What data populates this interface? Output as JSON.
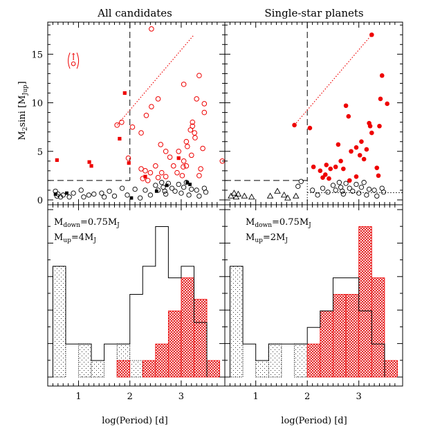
{
  "chart_data": [
    {
      "type": "scatter",
      "panel": "top-left",
      "title": "All candidates",
      "ylabel_main": "M",
      "ylabel_sub": "2",
      "ylabel_mid": "sini [M",
      "ylabel_sub2": "Jup",
      "ylabel_end": "]",
      "xlim": [
        0.4,
        3.85
      ],
      "ylim": [
        -0.5,
        18.3
      ],
      "yticks": [
        "0",
        "5",
        "10",
        "15"
      ],
      "xticks": [
        "1",
        "2",
        "3"
      ],
      "limit_marker": "↑",
      "limit_point": {
        "x": 0.9,
        "y": 14.3
      },
      "boundary": {
        "x": 2.0,
        "y": 2.0,
        "ymax": 18.3
      },
      "trend_line": [
        [
          1.75,
          7.7
        ],
        [
          3.25,
          17.0
        ]
      ],
      "series": [
        {
          "style": "open-red-circle",
          "points": [
            [
              2.42,
              17.6
            ],
            [
              1.75,
              7.7
            ],
            [
              1.84,
              8.0
            ],
            [
              1.97,
              4.3
            ],
            [
              2.05,
              7.5
            ],
            [
              2.22,
              6.9
            ],
            [
              2.32,
              8.7
            ],
            [
              2.42,
              9.6
            ],
            [
              2.55,
              10.4
            ],
            [
              2.6,
              5.7
            ],
            [
              2.7,
              5.0
            ],
            [
              2.78,
              4.4
            ],
            [
              2.85,
              3.5
            ],
            [
              2.95,
              5.0
            ],
            [
              3.05,
              11.9
            ],
            [
              3.1,
              6.0
            ],
            [
              3.1,
              3.5
            ],
            [
              3.18,
              7.2
            ],
            [
              3.22,
              7.6
            ],
            [
              3.3,
              10.4
            ],
            [
              3.35,
              12.8
            ],
            [
              3.45,
              9.9
            ],
            [
              3.22,
              8.0
            ],
            [
              3.26,
              6.9
            ],
            [
              3.27,
              6.4
            ],
            [
              3.12,
              5.5
            ],
            [
              3.2,
              4.6
            ],
            [
              3.05,
              4.0
            ],
            [
              3.02,
              2.5
            ],
            [
              2.92,
              2.8
            ],
            [
              2.7,
              2.4
            ],
            [
              2.62,
              2.8
            ],
            [
              2.5,
              3.5
            ],
            [
              2.4,
              2.8
            ],
            [
              2.3,
              3.0
            ],
            [
              2.35,
              2.0
            ],
            [
              2.55,
              2.3
            ],
            [
              3.35,
              2.5
            ],
            [
              3.38,
              3.2
            ],
            [
              3.42,
              5.3
            ],
            [
              3.45,
              9.0
            ],
            [
              3.8,
              4.0
            ],
            [
              3.04,
              3.4
            ],
            [
              2.22,
              3.2
            ],
            [
              2.25,
              2.2
            ]
          ]
        },
        {
          "style": "filled-red-square",
          "points": [
            [
              0.58,
              4.1
            ],
            [
              1.21,
              3.9
            ],
            [
              1.25,
              3.5
            ],
            [
              1.8,
              6.3
            ],
            [
              1.9,
              11.0
            ],
            [
              1.98,
              3.8
            ],
            [
              2.3,
              2.4
            ],
            [
              2.95,
              4.3
            ]
          ]
        },
        {
          "style": "open-black-circle",
          "points": [
            [
              0.55,
              0.9
            ],
            [
              0.58,
              0.4
            ],
            [
              0.6,
              0.6
            ],
            [
              0.65,
              0.3
            ],
            [
              0.7,
              0.5
            ],
            [
              0.82,
              0.3
            ],
            [
              0.9,
              0.7
            ],
            [
              1.05,
              1.0
            ],
            [
              1.1,
              0.3
            ],
            [
              1.2,
              0.5
            ],
            [
              1.3,
              0.6
            ],
            [
              1.45,
              0.7
            ],
            [
              1.5,
              0.3
            ],
            [
              1.6,
              0.9
            ],
            [
              1.7,
              0.4
            ],
            [
              1.85,
              1.2
            ],
            [
              1.95,
              0.5
            ],
            [
              2.1,
              1.1
            ],
            [
              2.2,
              0.2
            ],
            [
              2.3,
              1.0
            ],
            [
              2.4,
              0.5
            ],
            [
              2.5,
              1.5
            ],
            [
              2.55,
              1.0
            ],
            [
              2.62,
              1.8
            ],
            [
              2.65,
              1.3
            ],
            [
              2.7,
              0.6
            ],
            [
              2.75,
              1.7
            ],
            [
              2.82,
              1.2
            ],
            [
              2.88,
              0.9
            ],
            [
              2.95,
              1.6
            ],
            [
              3.0,
              0.7
            ],
            [
              3.05,
              1.3
            ],
            [
              3.1,
              1.8
            ],
            [
              3.15,
              0.5
            ],
            [
              3.2,
              1.1
            ],
            [
              3.3,
              1.0
            ],
            [
              3.35,
              0.4
            ],
            [
              3.45,
              1.2
            ],
            [
              3.48,
              0.8
            ],
            [
              2.68,
              0.9
            ]
          ]
        },
        {
          "style": "filled-black-square",
          "points": [
            [
              0.55,
              0.6
            ],
            [
              0.77,
              0.7
            ],
            [
              2.03,
              0.2
            ],
            [
              2.52,
              0.9
            ],
            [
              2.72,
              1.5
            ],
            [
              3.12,
              1.8
            ],
            [
              3.17,
              1.6
            ]
          ]
        }
      ]
    },
    {
      "type": "scatter",
      "panel": "top-right",
      "title": "Single-star planets",
      "xlim": [
        0.4,
        3.85
      ],
      "ylim": [
        -0.5,
        18.3
      ],
      "xticks": [
        "1",
        "2",
        "3"
      ],
      "boundary": {
        "x": 2.0,
        "y": 2.0,
        "ymax": 18.3,
        "y_lower": 0.75
      },
      "trend_line": [
        [
          1.75,
          7.7
        ],
        [
          3.25,
          17.0
        ]
      ],
      "series": [
        {
          "style": "filled-red-circle",
          "points": [
            [
              3.25,
              17.0
            ],
            [
              1.75,
              7.7
            ],
            [
              2.05,
              7.4
            ],
            [
              2.12,
              3.4
            ],
            [
              2.25,
              3.0
            ],
            [
              2.3,
              2.3
            ],
            [
              2.37,
              3.6
            ],
            [
              2.42,
              2.2
            ],
            [
              2.45,
              3.2
            ],
            [
              2.55,
              3.4
            ],
            [
              2.6,
              5.7
            ],
            [
              2.65,
              4.0
            ],
            [
              2.7,
              3.2
            ],
            [
              2.75,
              9.7
            ],
            [
              2.8,
              8.6
            ],
            [
              2.82,
              2.0
            ],
            [
              2.85,
              5.0
            ],
            [
              2.95,
              5.4
            ],
            [
              3.02,
              4.6
            ],
            [
              3.05,
              6.0
            ],
            [
              3.1,
              4.2
            ],
            [
              3.15,
              5.2
            ],
            [
              3.2,
              7.9
            ],
            [
              3.22,
              7.6
            ],
            [
              3.25,
              6.9
            ],
            [
              3.35,
              3.3
            ],
            [
              3.38,
              2.5
            ],
            [
              3.42,
              10.4
            ],
            [
              3.45,
              12.8
            ],
            [
              3.55,
              9.9
            ],
            [
              3.4,
              7.6
            ],
            [
              2.95,
              2.4
            ],
            [
              2.35,
              2.6
            ]
          ]
        },
        {
          "style": "open-black-circle",
          "points": [
            [
              2.1,
              1.0
            ],
            [
              2.2,
              0.5
            ],
            [
              2.3,
              1.2
            ],
            [
              2.4,
              0.8
            ],
            [
              2.5,
              1.5
            ],
            [
              2.55,
              1.0
            ],
            [
              2.62,
              1.8
            ],
            [
              2.65,
              1.3
            ],
            [
              2.7,
              0.6
            ],
            [
              2.75,
              1.7
            ],
            [
              2.82,
              1.2
            ],
            [
              2.88,
              0.9
            ],
            [
              2.95,
              1.6
            ],
            [
              3.0,
              0.7
            ],
            [
              3.05,
              1.3
            ],
            [
              3.1,
              1.8
            ],
            [
              3.15,
              0.5
            ],
            [
              3.2,
              1.1
            ],
            [
              3.3,
              1.0
            ],
            [
              3.35,
              0.4
            ],
            [
              3.45,
              1.2
            ],
            [
              3.48,
              0.8
            ],
            [
              2.68,
              0.9
            ],
            [
              1.88,
              1.9
            ],
            [
              1.82,
              1.4
            ]
          ]
        },
        {
          "style": "open-black-triangle",
          "points": [
            [
              0.52,
              0.4
            ],
            [
              0.58,
              0.7
            ],
            [
              0.62,
              0.3
            ],
            [
              0.66,
              0.6
            ],
            [
              0.78,
              0.4
            ],
            [
              0.92,
              0.3
            ],
            [
              1.28,
              0.4
            ],
            [
              1.42,
              0.9
            ],
            [
              1.55,
              0.5
            ],
            [
              1.62,
              0.2
            ],
            [
              1.78,
              0.4
            ]
          ]
        }
      ]
    },
    {
      "type": "histogram",
      "panel": "bottom-left",
      "annotation_1": {
        "pre": "M",
        "sub": "down",
        "post": "=0.75M",
        "sub2": "J"
      },
      "annotation_2": {
        "pre": "M",
        "sub": "up",
        "post": "=4M",
        "sub2": "J"
      },
      "xlim": [
        0.4,
        3.85
      ],
      "ylim": [
        0,
        10
      ],
      "xlabel": "log(Period) [d]",
      "xticks": [
        "1",
        "2",
        "3"
      ],
      "series": [
        {
          "style": "dotted",
          "bins": [
            [
              0.5,
              0.75,
              6.7
            ],
            [
              1.0,
              1.25,
              2.0
            ],
            [
              1.25,
              1.5,
              1.0
            ],
            [
              1.75,
              2.0,
              2.0
            ],
            [
              2.0,
              2.25,
              1.0
            ]
          ]
        },
        {
          "style": "outline",
          "bins": [
            [
              0.5,
              0.75,
              6.7
            ],
            [
              0.75,
              1.0,
              2.0
            ],
            [
              1.0,
              1.25,
              2.0
            ],
            [
              1.25,
              1.5,
              1.0
            ],
            [
              1.5,
              1.75,
              2.0
            ],
            [
              1.75,
              2.0,
              2.0
            ],
            [
              2.0,
              2.25,
              5.0
            ],
            [
              2.25,
              2.5,
              6.7
            ],
            [
              2.5,
              2.75,
              9.1
            ],
            [
              2.75,
              3.0,
              6.0
            ],
            [
              3.0,
              3.25,
              6.7
            ],
            [
              3.25,
              3.5,
              3.3
            ]
          ]
        },
        {
          "style": "red-crosshatch",
          "bins": [
            [
              1.75,
              2.0,
              1.0
            ],
            [
              2.25,
              2.5,
              1.0
            ],
            [
              2.5,
              2.75,
              2.0
            ],
            [
              2.75,
              3.0,
              4.0
            ],
            [
              3.0,
              3.25,
              6.0
            ],
            [
              3.25,
              3.5,
              4.7
            ],
            [
              3.5,
              3.75,
              1.0
            ]
          ]
        }
      ]
    },
    {
      "type": "histogram",
      "panel": "bottom-right",
      "annotation_1": {
        "pre": "M",
        "sub": "down",
        "post": "=0.75M",
        "sub2": "J"
      },
      "annotation_2": {
        "pre": "M",
        "sub": "up",
        "post": "=2M",
        "sub2": "J"
      },
      "xlim": [
        0.4,
        3.85
      ],
      "ylim": [
        0,
        10
      ],
      "xlabel": "log(Period) [d]",
      "xticks": [
        "1",
        "2",
        "3"
      ],
      "series": [
        {
          "style": "dotted",
          "bins": [
            [
              0.5,
              0.75,
              6.7
            ],
            [
              1.0,
              1.25,
              1.0
            ],
            [
              1.25,
              1.5,
              2.0
            ],
            [
              1.75,
              2.0,
              2.0
            ]
          ]
        },
        {
          "style": "outline",
          "bins": [
            [
              0.5,
              0.75,
              6.7
            ],
            [
              0.75,
              1.0,
              2.0
            ],
            [
              1.0,
              1.25,
              1.0
            ],
            [
              1.25,
              1.5,
              2.0
            ],
            [
              1.5,
              1.75,
              2.0
            ],
            [
              1.75,
              2.0,
              2.0
            ],
            [
              2.0,
              2.25,
              3.0
            ],
            [
              2.25,
              2.5,
              4.0
            ],
            [
              2.5,
              2.75,
              6.0
            ],
            [
              2.75,
              3.0,
              6.0
            ],
            [
              3.0,
              3.25,
              4.0
            ],
            [
              3.25,
              3.5,
              2.0
            ]
          ]
        },
        {
          "style": "red-crosshatch",
          "bins": [
            [
              2.0,
              2.25,
              2.0
            ],
            [
              2.25,
              2.5,
              4.0
            ],
            [
              2.5,
              2.75,
              5.0
            ],
            [
              2.75,
              3.0,
              5.0
            ],
            [
              3.0,
              3.25,
              9.1
            ],
            [
              3.25,
              3.5,
              6.0
            ],
            [
              3.5,
              3.75,
              1.0
            ]
          ]
        }
      ]
    }
  ],
  "colors": {
    "red": "#ee0000",
    "black": "#000000"
  }
}
